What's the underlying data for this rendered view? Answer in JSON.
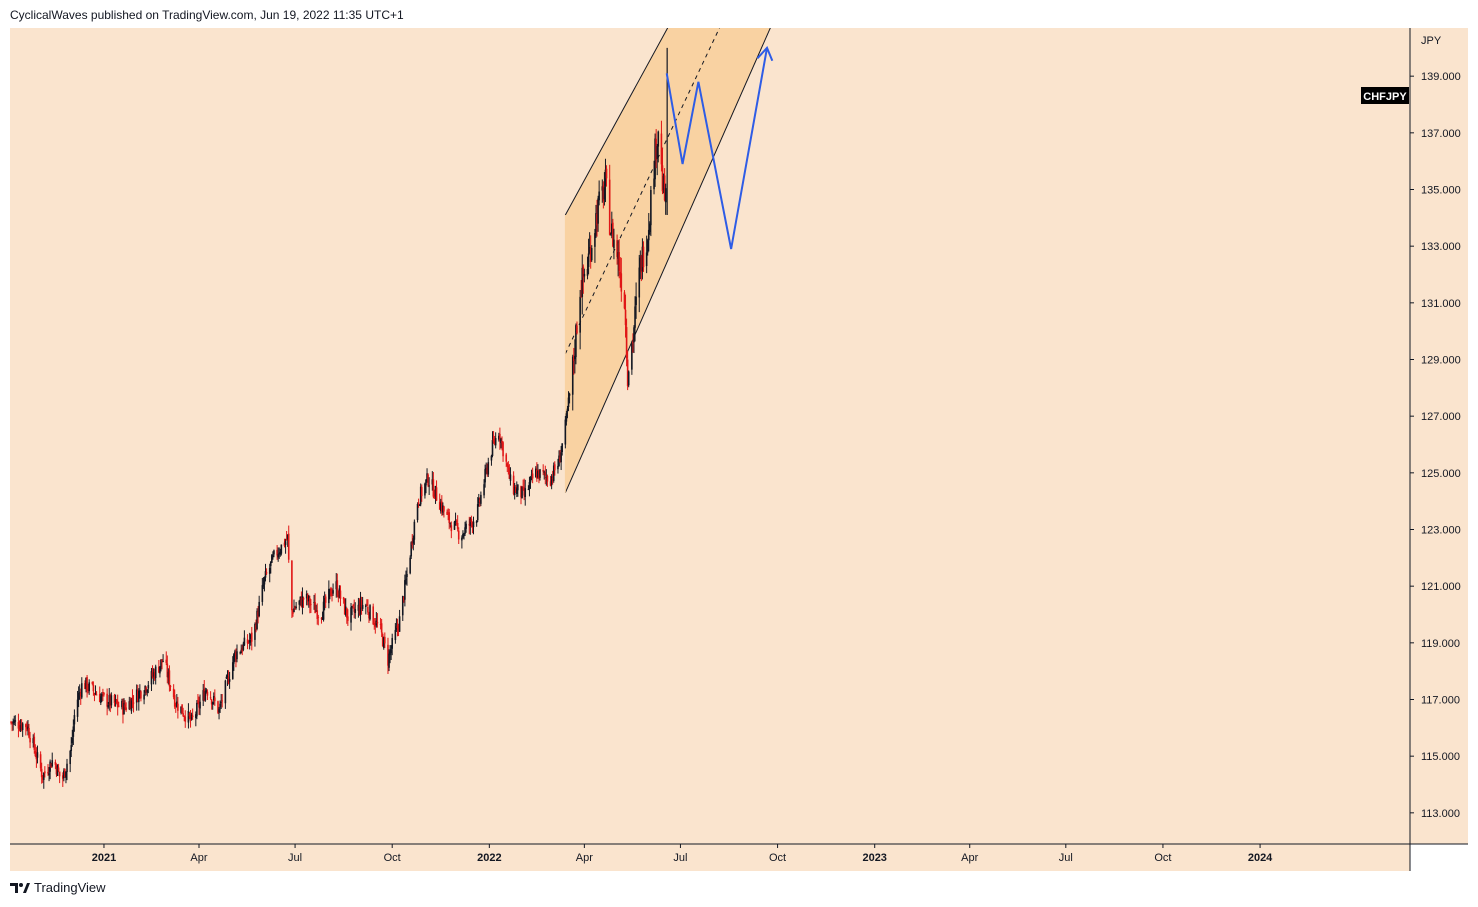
{
  "header": {
    "text": "CyclicalWaves published on TradingView.com, Jun 19, 2022 11:35 UTC+1"
  },
  "footer": {
    "brand": "TradingView",
    "logo_icon": "tradingview-logo-icon"
  },
  "colors": {
    "background": "#fae4ce",
    "channel_fill": "#f9d2a2",
    "up_candle": "#131722",
    "down_candle": "#e01616",
    "projection": "#2e5ce6",
    "symbol_badge_bg": "#000000"
  },
  "chart_data": {
    "type": "candlestick",
    "symbol": "CHFJPY",
    "currency": "JPY",
    "y_ticks": [
      "139.000",
      "137.000",
      "135.000",
      "133.000",
      "131.000",
      "129.000",
      "127.000",
      "125.000",
      "123.000",
      "121.000",
      "119.000",
      "117.000",
      "115.000",
      "113.000"
    ],
    "ylim": [
      111.9,
      140.7
    ],
    "x_ticks": [
      {
        "label": "2021",
        "date": "2021-01-01",
        "bold": true
      },
      {
        "label": "Apr",
        "date": "2021-04-01",
        "bold": false
      },
      {
        "label": "Jul",
        "date": "2021-07-01",
        "bold": false
      },
      {
        "label": "Oct",
        "date": "2021-10-01",
        "bold": false
      },
      {
        "label": "2022",
        "date": "2022-01-01",
        "bold": true
      },
      {
        "label": "Apr",
        "date": "2022-04-01",
        "bold": false
      },
      {
        "label": "Jul",
        "date": "2022-07-01",
        "bold": false
      },
      {
        "label": "Oct",
        "date": "2022-10-01",
        "bold": false
      },
      {
        "label": "2023",
        "date": "2023-01-01",
        "bold": true
      },
      {
        "label": "Apr",
        "date": "2023-04-01",
        "bold": false
      },
      {
        "label": "Jul",
        "date": "2023-07-01",
        "bold": false
      },
      {
        "label": "Oct",
        "date": "2023-10-01",
        "bold": false
      },
      {
        "label": "2024",
        "date": "2024-01-01",
        "bold": true
      }
    ],
    "xlim": [
      "2020-10-04",
      "2024-05-22"
    ],
    "price_path": [
      {
        "date": "2020-10-05",
        "close": 116.2
      },
      {
        "date": "2020-10-20",
        "close": 116.1
      },
      {
        "date": "2020-11-04",
        "close": 114.3
      },
      {
        "date": "2020-11-14",
        "close": 114.9
      },
      {
        "date": "2020-11-22",
        "close": 114.1
      },
      {
        "date": "2020-12-01",
        "close": 115.3
      },
      {
        "date": "2020-12-05",
        "close": 116.8
      },
      {
        "date": "2020-12-12",
        "close": 117.6
      },
      {
        "date": "2021-01-01",
        "close": 117.0
      },
      {
        "date": "2021-01-20",
        "close": 116.7
      },
      {
        "date": "2021-02-10",
        "close": 117.5
      },
      {
        "date": "2021-02-26",
        "close": 118.4
      },
      {
        "date": "2021-03-10",
        "close": 116.9
      },
      {
        "date": "2021-03-25",
        "close": 116.2
      },
      {
        "date": "2021-04-08",
        "close": 117.4
      },
      {
        "date": "2021-04-20",
        "close": 116.6
      },
      {
        "date": "2021-05-05",
        "close": 118.6
      },
      {
        "date": "2021-05-22",
        "close": 119.2
      },
      {
        "date": "2021-06-02",
        "close": 121.2
      },
      {
        "date": "2021-06-12",
        "close": 122.1
      },
      {
        "date": "2021-06-24",
        "close": 122.7
      },
      {
        "date": "2021-06-27",
        "close": 120.1
      },
      {
        "date": "2021-07-10",
        "close": 120.6
      },
      {
        "date": "2021-07-25",
        "close": 120.0
      },
      {
        "date": "2021-08-08",
        "close": 121.1
      },
      {
        "date": "2021-08-20",
        "close": 119.9
      },
      {
        "date": "2021-09-05",
        "close": 120.4
      },
      {
        "date": "2021-09-20",
        "close": 119.4
      },
      {
        "date": "2021-09-27",
        "close": 118.4
      },
      {
        "date": "2021-10-08",
        "close": 119.8
      },
      {
        "date": "2021-10-15",
        "close": 121.4
      },
      {
        "date": "2021-10-25",
        "close": 124.0
      },
      {
        "date": "2021-11-04",
        "close": 124.8
      },
      {
        "date": "2021-11-12",
        "close": 124.2
      },
      {
        "date": "2021-11-22",
        "close": 123.4
      },
      {
        "date": "2021-12-05",
        "close": 122.8
      },
      {
        "date": "2021-12-20",
        "close": 123.5
      },
      {
        "date": "2022-01-02",
        "close": 125.7
      },
      {
        "date": "2022-01-10",
        "close": 126.5
      },
      {
        "date": "2022-01-22",
        "close": 124.5
      },
      {
        "date": "2022-02-03",
        "close": 124.2
      },
      {
        "date": "2022-02-14",
        "close": 125.0
      },
      {
        "date": "2022-02-28",
        "close": 124.8
      },
      {
        "date": "2022-03-08",
        "close": 125.4
      },
      {
        "date": "2022-03-14",
        "close": 126.6
      },
      {
        "date": "2022-03-20",
        "close": 128.3
      },
      {
        "date": "2022-03-28",
        "close": 131.5
      },
      {
        "date": "2022-04-04",
        "close": 132.4
      },
      {
        "date": "2022-04-13",
        "close": 134.2
      },
      {
        "date": "2022-04-21",
        "close": 135.2
      },
      {
        "date": "2022-04-26",
        "close": 133.6
      },
      {
        "date": "2022-05-03",
        "close": 132.6
      },
      {
        "date": "2022-05-09",
        "close": 131.1
      },
      {
        "date": "2022-05-12",
        "close": 128.6
      },
      {
        "date": "2022-05-17",
        "close": 129.8
      },
      {
        "date": "2022-05-24",
        "close": 132.3
      },
      {
        "date": "2022-05-31",
        "close": 133.5
      },
      {
        "date": "2022-06-07",
        "close": 136.3
      },
      {
        "date": "2022-06-10",
        "close": 137.2
      },
      {
        "date": "2022-06-14",
        "close": 135.2
      },
      {
        "date": "2022-06-17",
        "close": 134.5
      }
    ],
    "channel": {
      "upper_line": [
        [
          "2022-03-14",
          134.1
        ],
        [
          "2022-08-18",
          144.8
        ]
      ],
      "lower_line": [
        [
          "2022-03-14",
          124.3
        ],
        [
          "2022-11-14",
          145.0
        ]
      ],
      "mid_line": [
        [
          "2022-03-14",
          129.2
        ],
        [
          "2022-09-28",
          144.8
        ]
      ]
    },
    "projection": {
      "points": [
        [
          "2022-06-18",
          139.1
        ],
        [
          "2022-07-03",
          135.9
        ],
        [
          "2022-07-18",
          138.8
        ],
        [
          "2022-08-18",
          132.9
        ],
        [
          "2022-09-21",
          140.0
        ]
      ]
    }
  }
}
